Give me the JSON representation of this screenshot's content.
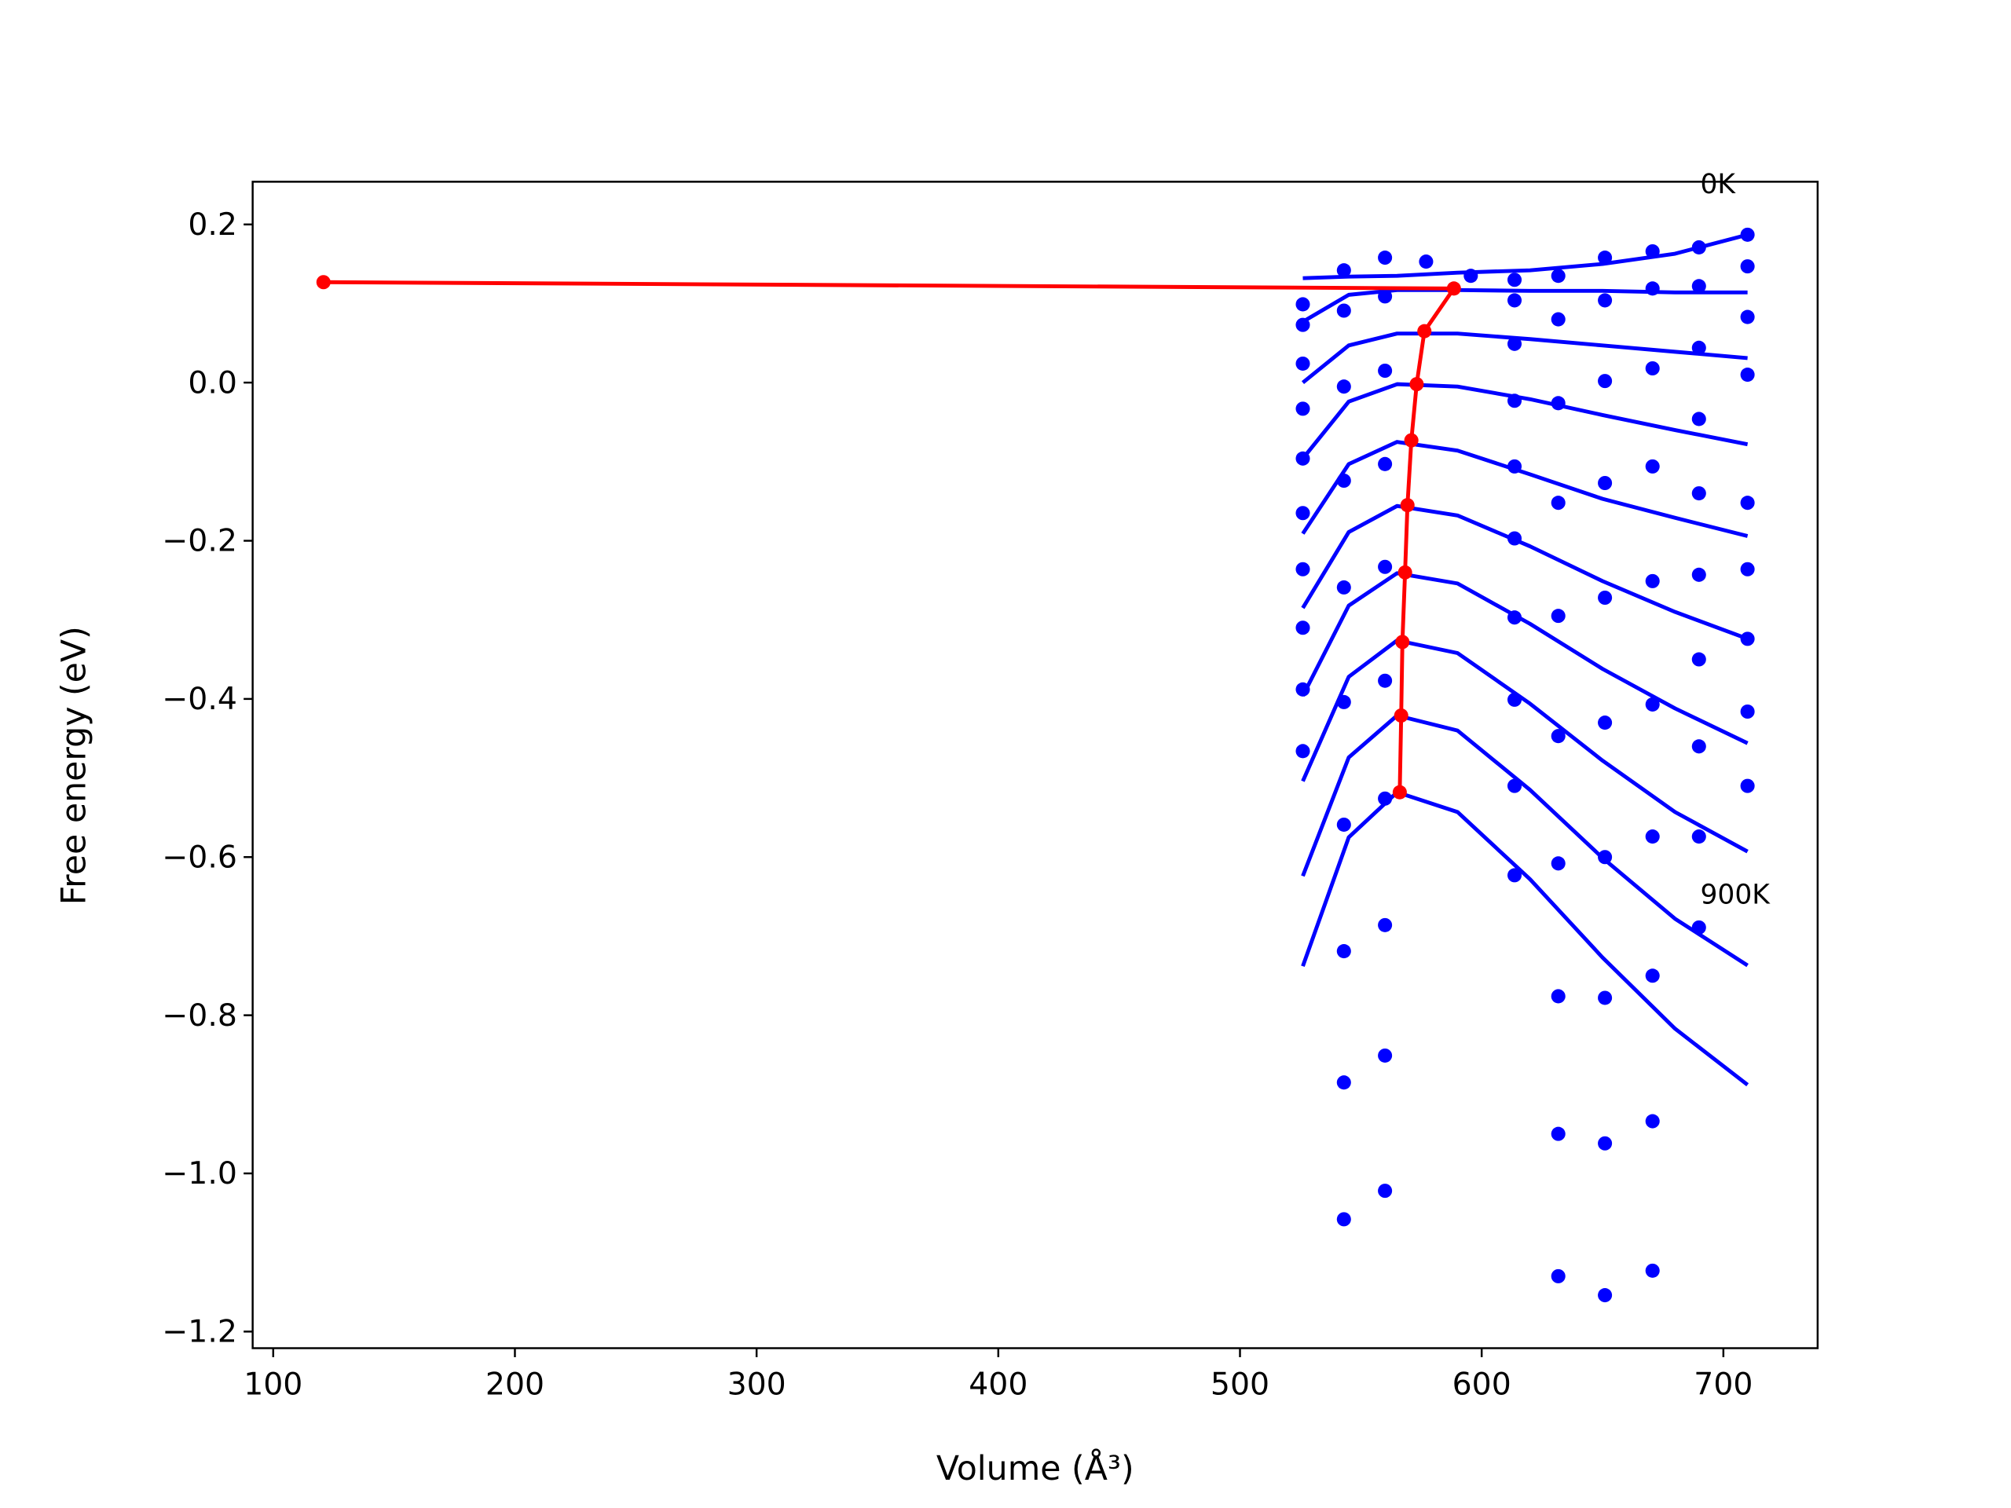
{
  "chart_data": {
    "type": "line",
    "xlabel": "Volume (Å³)",
    "ylabel": "Free energy (eV)",
    "xlim": [
      91.5,
      739
    ],
    "ylim": [
      -1.221,
      0.254
    ],
    "xticks": [
      100,
      200,
      300,
      400,
      500,
      600,
      700
    ],
    "yticks": [
      0.2,
      {
        "value": 0,
        "label": "0.0"
      },
      {
        "value": -0.2,
        "label": "−0.2"
      },
      {
        "value": -0.4,
        "label": "−0.4"
      },
      {
        "value": -0.6,
        "label": "−0.6"
      },
      {
        "value": -0.8,
        "label": "−0.8"
      },
      {
        "value": -1.0,
        "label": "−1.0"
      },
      {
        "value": -1.2,
        "label": "−1.2"
      }
    ],
    "annotations": [
      "0K",
      "900K"
    ],
    "series": [
      {
        "type": "scatter",
        "color": "#0000ff",
        "x": [
          526,
          526,
          526,
          526,
          526,
          526,
          526,
          526,
          526,
          526,
          543,
          543,
          543,
          543,
          543,
          543,
          543,
          543,
          543,
          543,
          560,
          560,
          560,
          560,
          560,
          560,
          560,
          560,
          560,
          560,
          577,
          595.5,
          613.6,
          613.6,
          613.6,
          613.6,
          613.6,
          613.6,
          613.6,
          613.6,
          613.6,
          613.6,
          631.7,
          631.7,
          631.7,
          631.7,
          631.7,
          631.7,
          631.7,
          631.7,
          631.7,
          631.7,
          651,
          651,
          651,
          651,
          651,
          651,
          651,
          651,
          651,
          651,
          670.7,
          670.7,
          670.7,
          670.7,
          670.7,
          670.7,
          670.7,
          670.7,
          670.7,
          670.7,
          689.9,
          689.9,
          689.9,
          689.9,
          689.9,
          689.9,
          689.9,
          689.9,
          689.9,
          689.9,
          710,
          710,
          710,
          710,
          710,
          710,
          710,
          710,
          710
        ],
        "values": [
          0.099,
          0.073,
          0.024,
          -0.033,
          -0.096,
          -0.165,
          -0.236,
          -0.31,
          -0.388,
          -0.466,
          0.142,
          0.091,
          -0.005,
          -0.124,
          -0.259,
          -0.404,
          -0.559,
          -0.719,
          -0.885,
          -1.058,
          0.158,
          0.109,
          0.015,
          -0.103,
          -0.233,
          -0.377,
          -0.526,
          -0.686,
          -0.851,
          -1.022,
          0.153,
          0.135,
          0.13,
          0.104,
          0.049,
          -0.023,
          -0.106,
          -0.197,
          -0.297,
          -0.401,
          -0.51,
          -0.623,
          0.135,
          0.08,
          -0.026,
          -0.152,
          -0.295,
          -0.447,
          -0.608,
          -0.776,
          -0.95,
          -1.13,
          0.158,
          0.104,
          0.002,
          -0.127,
          -0.272,
          -0.43,
          -0.6,
          -0.778,
          -0.962,
          -1.154,
          0.166,
          0.119,
          0.018,
          -0.106,
          -0.251,
          -0.407,
          -0.574,
          -0.75,
          -0.934,
          -1.123,
          0.171,
          0.122,
          0.044,
          -0.046,
          -0.14,
          -0.243,
          -0.35,
          -0.46,
          -0.574,
          -0.689,
          0.187,
          0.147,
          0.083,
          0.01,
          -0.152,
          -0.236,
          -0.324,
          -0.416,
          -0.51
        ]
      },
      {
        "type": "line",
        "color": "#0000ff",
        "x": [
          526,
          545,
          565,
          590,
          620,
          650,
          680,
          710
        ],
        "values": [
          0.132,
          0.134,
          0.135,
          0.139,
          0.142,
          0.15,
          0.163,
          0.187
        ]
      },
      {
        "type": "line",
        "color": "#0000ff",
        "x": [
          526,
          545,
          565,
          590,
          620,
          650,
          680,
          710
        ],
        "values": [
          0.077,
          0.111,
          0.117,
          0.117,
          0.116,
          0.116,
          0.114,
          0.114
        ]
      },
      {
        "type": "line",
        "color": "#0000ff",
        "x": [
          526,
          545,
          565,
          590,
          620,
          650,
          680,
          710
        ],
        "values": [
          0,
          0.047,
          0.062,
          0.062,
          0.055,
          0.047,
          0.039,
          0.031
        ]
      },
      {
        "type": "line",
        "color": "#0000ff",
        "x": [
          526,
          545,
          565,
          590,
          620,
          650,
          680,
          710
        ],
        "values": [
          -0.096,
          -0.024,
          -0.002,
          -0.005,
          -0.021,
          -0.041,
          -0.06,
          -0.078
        ]
      },
      {
        "type": "line",
        "color": "#0000ff",
        "x": [
          526,
          545,
          565,
          590,
          620,
          650,
          680,
          710
        ],
        "values": [
          -0.191,
          -0.103,
          -0.075,
          -0.086,
          -0.116,
          -0.147,
          -0.171,
          -0.194
        ]
      },
      {
        "type": "line",
        "color": "#0000ff",
        "x": [
          526,
          545,
          565,
          590,
          620,
          650,
          680,
          710
        ],
        "values": [
          -0.285,
          -0.189,
          -0.156,
          -0.168,
          -0.207,
          -0.251,
          -0.29,
          -0.324
        ]
      },
      {
        "type": "line",
        "color": "#0000ff",
        "x": [
          526,
          545,
          565,
          590,
          620,
          650,
          680,
          710
        ],
        "values": [
          -0.396,
          -0.282,
          -0.241,
          -0.254,
          -0.305,
          -0.362,
          -0.412,
          -0.456
        ]
      },
      {
        "type": "line",
        "color": "#0000ff",
        "x": [
          526,
          545,
          565,
          590,
          620,
          650,
          680,
          710
        ],
        "values": [
          -0.504,
          -0.372,
          -0.326,
          -0.342,
          -0.406,
          -0.478,
          -0.543,
          -0.593
        ]
      },
      {
        "type": "line",
        "color": "#0000ff",
        "x": [
          526,
          545,
          565,
          590,
          620,
          650,
          680,
          710
        ],
        "values": [
          -0.624,
          -0.474,
          -0.421,
          -0.44,
          -0.515,
          -0.601,
          -0.678,
          -0.737
        ]
      },
      {
        "type": "line",
        "color": "#0000ff",
        "x": [
          526,
          545,
          565,
          590,
          620,
          650,
          680,
          710
        ],
        "values": [
          -0.738,
          -0.575,
          -0.518,
          -0.543,
          -0.628,
          -0.727,
          -0.817,
          -0.888
        ]
      },
      {
        "type": "line",
        "color": "#ff0000",
        "markers": true,
        "x": [
          120.8,
          588.5,
          576.3,
          573.1,
          570.9,
          569.3,
          568.3,
          567.2,
          566.7,
          566.1
        ],
        "values": [
          0.127,
          0.119,
          0.065,
          -0.002,
          -0.073,
          -0.155,
          -0.24,
          -0.328,
          -0.421,
          -0.518
        ]
      }
    ]
  }
}
